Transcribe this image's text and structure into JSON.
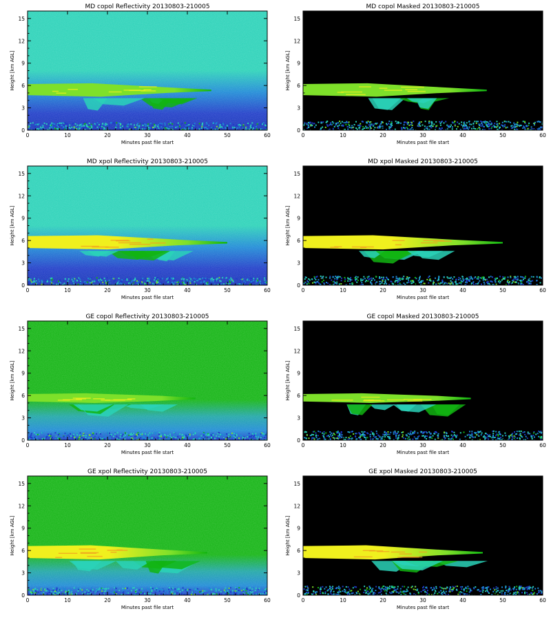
{
  "colors": {
    "masked_background": "#000000",
    "low_noise": "#1e3cc8",
    "mid_blue": "#1c8ad6",
    "cyan": "#2ad2b8",
    "green": "#12b412",
    "light_green": "#7ee02a",
    "yellow": "#f0f01e",
    "orange": "#f0a020"
  },
  "chart_data": [
    {
      "type": "heatmap",
      "title": "MD copol Reflectivity 20130803-210005",
      "xlabel": "Minutes past file start",
      "ylabel": "Height [km AGL]",
      "xlim": [
        0,
        60
      ],
      "ylim": [
        0,
        16
      ],
      "xticks": [
        "0",
        "10",
        "20",
        "30",
        "40",
        "50",
        "60"
      ],
      "yticks": [
        "0",
        "3",
        "6",
        "9",
        "12",
        "15"
      ],
      "masked": false,
      "background": "teal",
      "cloud_layer_km": [
        4.5,
        6.2
      ],
      "cloud_extent_min": [
        0,
        46
      ],
      "cloud_peak": "light-green"
    },
    {
      "type": "heatmap",
      "title": "MD copol Masked 20130803-210005",
      "xlabel": "Minutes past file start",
      "ylabel": "Height [km AGL]",
      "xlim": [
        0,
        60
      ],
      "ylim": [
        0,
        16
      ],
      "xticks": [
        "0",
        "10",
        "20",
        "30",
        "40",
        "50",
        "60"
      ],
      "yticks": [
        "0",
        "3",
        "6",
        "9",
        "12",
        "15"
      ],
      "masked": true,
      "background": "black",
      "cloud_layer_km": [
        4.5,
        6.2
      ],
      "cloud_extent_min": [
        0,
        46
      ],
      "cloud_peak": "light-green"
    },
    {
      "type": "heatmap",
      "title": "MD xpol Reflectivity 20130803-210005",
      "xlabel": "Minutes past file start",
      "ylabel": "Height [km AGL]",
      "xlim": [
        0,
        60
      ],
      "ylim": [
        0,
        16
      ],
      "xticks": [
        "0",
        "10",
        "20",
        "30",
        "40",
        "50",
        "60"
      ],
      "yticks": [
        "0",
        "3",
        "6",
        "9",
        "12",
        "15"
      ],
      "masked": false,
      "background": "teal",
      "cloud_layer_km": [
        4.8,
        6.6
      ],
      "cloud_extent_min": [
        0,
        50
      ],
      "cloud_peak": "yellow"
    },
    {
      "type": "heatmap",
      "title": "MD xpol Masked 20130803-210005",
      "xlabel": "Minutes past file start",
      "ylabel": "Height [km AGL]",
      "xlim": [
        0,
        60
      ],
      "ylim": [
        0,
        16
      ],
      "xticks": [
        "0",
        "10",
        "20",
        "30",
        "40",
        "50",
        "60"
      ],
      "yticks": [
        "0",
        "3",
        "6",
        "9",
        "12",
        "15"
      ],
      "masked": true,
      "background": "black",
      "cloud_layer_km": [
        4.8,
        6.6
      ],
      "cloud_extent_min": [
        0,
        50
      ],
      "cloud_peak": "yellow"
    },
    {
      "type": "heatmap",
      "title": "GE copol Reflectivity 20130803-210005",
      "xlabel": "Minutes past file start",
      "ylabel": "Height [km AGL]",
      "xlim": [
        0,
        60
      ],
      "ylim": [
        0,
        16
      ],
      "xticks": [
        "0",
        "10",
        "20",
        "30",
        "40",
        "50",
        "60"
      ],
      "yticks": [
        "0",
        "3",
        "6",
        "9",
        "12",
        "15"
      ],
      "masked": false,
      "background": "green",
      "cloud_layer_km": [
        5.0,
        6.2
      ],
      "cloud_extent_min": [
        0,
        42
      ],
      "cloud_peak": "light-green"
    },
    {
      "type": "heatmap",
      "title": "GE copol Masked 20130803-210005",
      "xlabel": "Minutes past file start",
      "ylabel": "Height [km AGL]",
      "xlim": [
        0,
        60
      ],
      "ylim": [
        0,
        16
      ],
      "xticks": [
        "0",
        "10",
        "20",
        "30",
        "40",
        "50",
        "60"
      ],
      "yticks": [
        "0",
        "3",
        "6",
        "9",
        "12",
        "15"
      ],
      "masked": true,
      "background": "black",
      "cloud_layer_km": [
        5.0,
        6.2
      ],
      "cloud_extent_min": [
        0,
        42
      ],
      "cloud_peak": "light-green"
    },
    {
      "type": "heatmap",
      "title": "GE xpol Reflectivity 20130803-210005",
      "xlabel": "Minutes past file start",
      "ylabel": "Height [km AGL]",
      "xlim": [
        0,
        60
      ],
      "ylim": [
        0,
        16
      ],
      "xticks": [
        "0",
        "10",
        "20",
        "30",
        "40",
        "50",
        "60"
      ],
      "yticks": [
        "0",
        "3",
        "6",
        "9",
        "12",
        "15"
      ],
      "masked": false,
      "background": "green",
      "cloud_layer_km": [
        4.8,
        6.6
      ],
      "cloud_extent_min": [
        0,
        45
      ],
      "cloud_peak": "yellow"
    },
    {
      "type": "heatmap",
      "title": "GE xpol Masked 20130803-210005",
      "xlabel": "Minutes past file start",
      "ylabel": "Height [km AGL]",
      "xlim": [
        0,
        60
      ],
      "ylim": [
        0,
        16
      ],
      "xticks": [
        "0",
        "10",
        "20",
        "30",
        "40",
        "50",
        "60"
      ],
      "yticks": [
        "0",
        "3",
        "6",
        "9",
        "12",
        "15"
      ],
      "masked": true,
      "background": "black",
      "cloud_layer_km": [
        4.8,
        6.6
      ],
      "cloud_extent_min": [
        0,
        45
      ],
      "cloud_peak": "yellow"
    }
  ]
}
